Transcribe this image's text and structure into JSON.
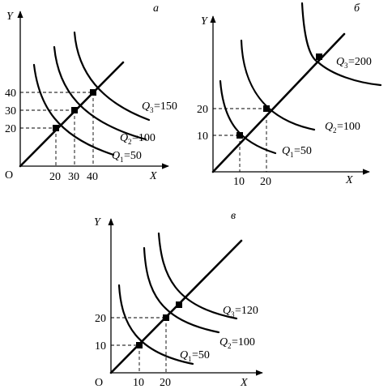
{
  "panels": [
    {
      "id": "a",
      "letter": "а",
      "y_axis_label": "Y",
      "x_axis_label": "X",
      "origin_label": "O",
      "x_ticks": [
        "20",
        "30",
        "40"
      ],
      "y_ticks": [
        "20",
        "30",
        "40"
      ],
      "quantities": [
        {
          "q": "Q",
          "sub": "1",
          "value": "=50"
        },
        {
          "q": "Q",
          "sub": "2",
          "value": "=100"
        },
        {
          "q": "Q",
          "sub": "3",
          "value": "=150"
        }
      ]
    },
    {
      "id": "b",
      "letter": "б",
      "y_axis_label": "Y",
      "x_axis_label": "X",
      "origin_label": "",
      "x_ticks": [
        "10",
        "20"
      ],
      "y_ticks": [
        "10",
        "20"
      ],
      "quantities": [
        {
          "q": "Q",
          "sub": "1",
          "value": "=50"
        },
        {
          "q": "Q",
          "sub": "2",
          "value": "=100"
        },
        {
          "q": "Q",
          "sub": "3",
          "value": "=200"
        }
      ]
    },
    {
      "id": "c",
      "letter": "в",
      "y_axis_label": "Y",
      "x_axis_label": "X",
      "origin_label": "O",
      "x_ticks": [
        "10",
        "20"
      ],
      "y_ticks": [
        "10",
        "20"
      ],
      "quantities": [
        {
          "q": "Q",
          "sub": "1",
          "value": "=50"
        },
        {
          "q": "Q",
          "sub": "2",
          "value": "=100"
        },
        {
          "q": "Q",
          "sub": "3",
          "value": "=120"
        }
      ]
    }
  ]
}
